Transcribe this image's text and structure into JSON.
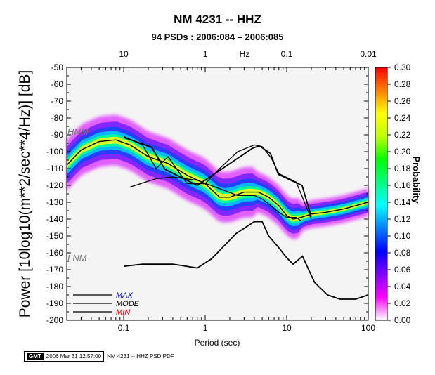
{
  "title": "NM 4231 -- HHZ",
  "subtitle": "94 PSDs : 2006:084 – 2006:085",
  "footer": {
    "logo": "GMT",
    "timestamp": "2006 Mar 31 12:57:00",
    "caption": "NM 4231 -- HHZ PSD PDF"
  },
  "chart_data": {
    "type": "heatmap",
    "xlabel": "Period (sec)",
    "ylabel": "Power [10log10(m**2/sec**4/Hz)] [dB]",
    "top_axis_label": "Hz",
    "x_scale": "log",
    "xlim": [
      0.02,
      100
    ],
    "ylim": [
      -200,
      -50
    ],
    "x_ticks": [
      {
        "value": 0.1,
        "label": "0.1"
      },
      {
        "value": 1,
        "label": "1"
      },
      {
        "value": 10,
        "label": "10"
      },
      {
        "value": 100,
        "label": "100"
      }
    ],
    "top_ticks": [
      {
        "value": 0.1,
        "label": "10"
      },
      {
        "value": 1,
        "label": "1"
      },
      {
        "value": 10,
        "label": "0.1"
      },
      {
        "value": 100,
        "label": "0.01"
      }
    ],
    "y_ticks": [
      -50,
      -60,
      -70,
      -80,
      -90,
      -100,
      -110,
      -120,
      -130,
      -140,
      -150,
      -160,
      -170,
      -180,
      -190,
      -200
    ],
    "colorbar": {
      "label": "Probability",
      "range": [
        0,
        0.3
      ],
      "ticks": [
        "0.00",
        "0.02",
        "0.04",
        "0.06",
        "0.08",
        "0.10",
        "0.12",
        "0.14",
        "0.16",
        "0.18",
        "0.20",
        "0.22",
        "0.24",
        "0.26",
        "0.28",
        "0.30"
      ],
      "colors": [
        "#ffffff",
        "#ff00ff",
        "#8000ff",
        "#0000ff",
        "#0080ff",
        "#00ffff",
        "#00ff80",
        "#00ff00",
        "#c0ff00",
        "#ffff00",
        "#ff8000",
        "#ff0000"
      ]
    },
    "legend": {
      "placement": "bottom-left",
      "entries": [
        {
          "label": "MAX",
          "color": "#0000cc"
        },
        {
          "label": "MODE",
          "color": "#000000"
        },
        {
          "label": "MIN",
          "color": "#cc0000"
        }
      ]
    },
    "model_labels": {
      "hnm": "HNM",
      "lnm": "LNM"
    },
    "series": [
      {
        "name": "MODE",
        "x": [
          0.02,
          0.03,
          0.05,
          0.08,
          0.12,
          0.2,
          0.35,
          0.6,
          1.0,
          1.5,
          2.0,
          3.0,
          4.5,
          6.0,
          8.0,
          10,
          12,
          15,
          20,
          30,
          50,
          100
        ],
        "y": [
          -108,
          -99,
          -94,
          -93,
          -96,
          -103,
          -107,
          -114,
          -119,
          -127,
          -127,
          -124,
          -124,
          -127,
          -132,
          -138,
          -140,
          -139,
          -137,
          -136,
          -134,
          -130
        ]
      },
      {
        "name": "MAX",
        "x": [
          0.1,
          0.17,
          0.25,
          0.35,
          0.6,
          1.0,
          1.5,
          2.5,
          4.0,
          5.0,
          6.5,
          8.0,
          13.0,
          15.0,
          20.0
        ],
        "y": [
          -91,
          -96,
          -110,
          -103,
          -119,
          -119,
          -110,
          -100,
          -96,
          -97,
          -104,
          -113,
          -118,
          -125,
          -140
        ]
      },
      {
        "name": "MIN",
        "x": [
          0.12,
          0.25,
          0.4,
          0.8,
          1.5,
          2.5,
          4.0,
          5.0,
          6.0,
          8.0,
          10,
          13,
          15
        ],
        "y": [
          -121,
          -116,
          -115,
          -117,
          -122,
          -126,
          -126,
          -128,
          -131,
          -136,
          -139,
          -139,
          -141
        ]
      }
    ],
    "nlnm": {
      "x": [
        0.1,
        0.17,
        0.4,
        0.8,
        1.2,
        2.4,
        4.0,
        5.0,
        6.0,
        8.0,
        10,
        12,
        15.6,
        21.9,
        31.6,
        45,
        70,
        100
      ],
      "y": [
        -168,
        -166.7,
        -166.7,
        -169,
        -163.5,
        -148.5,
        -141.5,
        -141.5,
        -150,
        -157,
        -163,
        -166.7,
        -162,
        -177.5,
        -185,
        -187.5,
        -187.5,
        -185
      ]
    },
    "nhnm": {
      "x": [
        0.1,
        0.22,
        0.32,
        0.8,
        3.8,
        4.6,
        6.3,
        7.9,
        15.4,
        20.0
      ],
      "y": [
        -91.5,
        -97.4,
        -110.5,
        -120,
        -98,
        -96.5,
        -101,
        -113.5,
        -120,
        -138.5
      ]
    }
  }
}
